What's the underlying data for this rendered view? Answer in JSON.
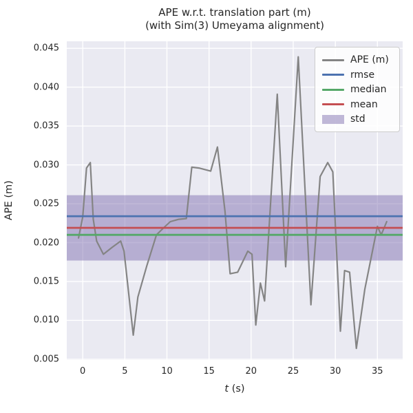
{
  "title": {
    "line1": "APE w.r.t. translation part (m)",
    "line2": "(with Sim(3) Umeyama alignment)"
  },
  "axes": {
    "ylabel": "APE (m)",
    "xlabel_italic": "t",
    "xlabel_rest": " (s)",
    "x_ticks": [
      {
        "value": 0,
        "label": "0"
      },
      {
        "value": 5,
        "label": "5"
      },
      {
        "value": 10,
        "label": "10"
      },
      {
        "value": 15,
        "label": "15"
      },
      {
        "value": 20,
        "label": "20"
      },
      {
        "value": 25,
        "label": "25"
      },
      {
        "value": 30,
        "label": "30"
      },
      {
        "value": 35,
        "label": "35"
      }
    ],
    "y_ticks": [
      {
        "value": 0.005,
        "label": "0.005"
      },
      {
        "value": 0.01,
        "label": "0.010"
      },
      {
        "value": 0.015,
        "label": "0.015"
      },
      {
        "value": 0.02,
        "label": "0.020"
      },
      {
        "value": 0.025,
        "label": "0.025"
      },
      {
        "value": 0.03,
        "label": "0.030"
      },
      {
        "value": 0.035,
        "label": "0.035"
      },
      {
        "value": 0.04,
        "label": "0.040"
      },
      {
        "value": 0.045,
        "label": "0.045"
      }
    ]
  },
  "legend": {
    "items": [
      {
        "label": "APE (m)",
        "swatch": "line",
        "color": "#848484"
      },
      {
        "label": "rmse",
        "swatch": "line",
        "color": "#4C72B0"
      },
      {
        "label": "median",
        "swatch": "line",
        "color": "#55A868"
      },
      {
        "label": "mean",
        "swatch": "line",
        "color": "#C44E52"
      },
      {
        "label": "std",
        "swatch": "patch",
        "color": "rgba(129,114,178,0.5)"
      }
    ]
  },
  "colors": {
    "plot_bg": "#EAEAF2",
    "grid": "#FFFFFF",
    "ape_line": "#848484",
    "rmse_line": "#4C72B0",
    "median_line": "#55A868",
    "mean_line": "#C44E52",
    "std_band": "rgba(129,114,178,0.5)",
    "text": "#262626"
  },
  "chart_data": {
    "type": "line",
    "title": "APE w.r.t. translation part (m) (with Sim(3) Umeyama alignment)",
    "xlabel": "t (s)",
    "ylabel": "APE (m)",
    "xlim": [
      -1.9,
      38.0
    ],
    "ylim": [
      0.0049,
      0.0459
    ],
    "grid": true,
    "legend_position": "upper right",
    "series": [
      {
        "name": "APE (m)",
        "type": "line",
        "color": "#848484",
        "x": [
          -0.5,
          0.0,
          0.45,
          0.9,
          1.25,
          1.65,
          2.45,
          3.5,
          4.5,
          4.9,
          6.0,
          6.55,
          7.6,
          8.75,
          9.6,
          10.4,
          11.4,
          12.3,
          12.95,
          13.8,
          15.2,
          16.0,
          16.9,
          17.5,
          18.4,
          19.6,
          20.1,
          20.55,
          21.1,
          21.6,
          23.1,
          24.1,
          25.6,
          27.1,
          28.2,
          29.1,
          29.7,
          30.6,
          31.1,
          31.7,
          32.5,
          33.5,
          35.0,
          35.45,
          36.1
        ],
        "y": [
          0.0206,
          0.0233,
          0.0296,
          0.0303,
          0.023,
          0.0202,
          0.0185,
          0.0194,
          0.0202,
          0.0189,
          0.0081,
          0.013,
          0.017,
          0.021,
          0.0219,
          0.0227,
          0.023,
          0.0231,
          0.0297,
          0.0296,
          0.0292,
          0.0323,
          0.024,
          0.016,
          0.0162,
          0.0189,
          0.0185,
          0.0094,
          0.0148,
          0.0125,
          0.0391,
          0.0169,
          0.0439,
          0.012,
          0.0285,
          0.0303,
          0.0291,
          0.0086,
          0.0164,
          0.0162,
          0.0064,
          0.014,
          0.0221,
          0.021,
          0.0227
        ]
      },
      {
        "name": "rmse",
        "type": "hline",
        "color": "#4C72B0",
        "value": 0.0234
      },
      {
        "name": "median",
        "type": "hline",
        "color": "#55A868",
        "value": 0.021
      },
      {
        "name": "mean",
        "type": "hline",
        "color": "#C44E52",
        "value": 0.0219
      },
      {
        "name": "std",
        "type": "hband",
        "color": "rgba(129,114,178,0.5)",
        "range": [
          0.0177,
          0.0261
        ]
      }
    ]
  }
}
